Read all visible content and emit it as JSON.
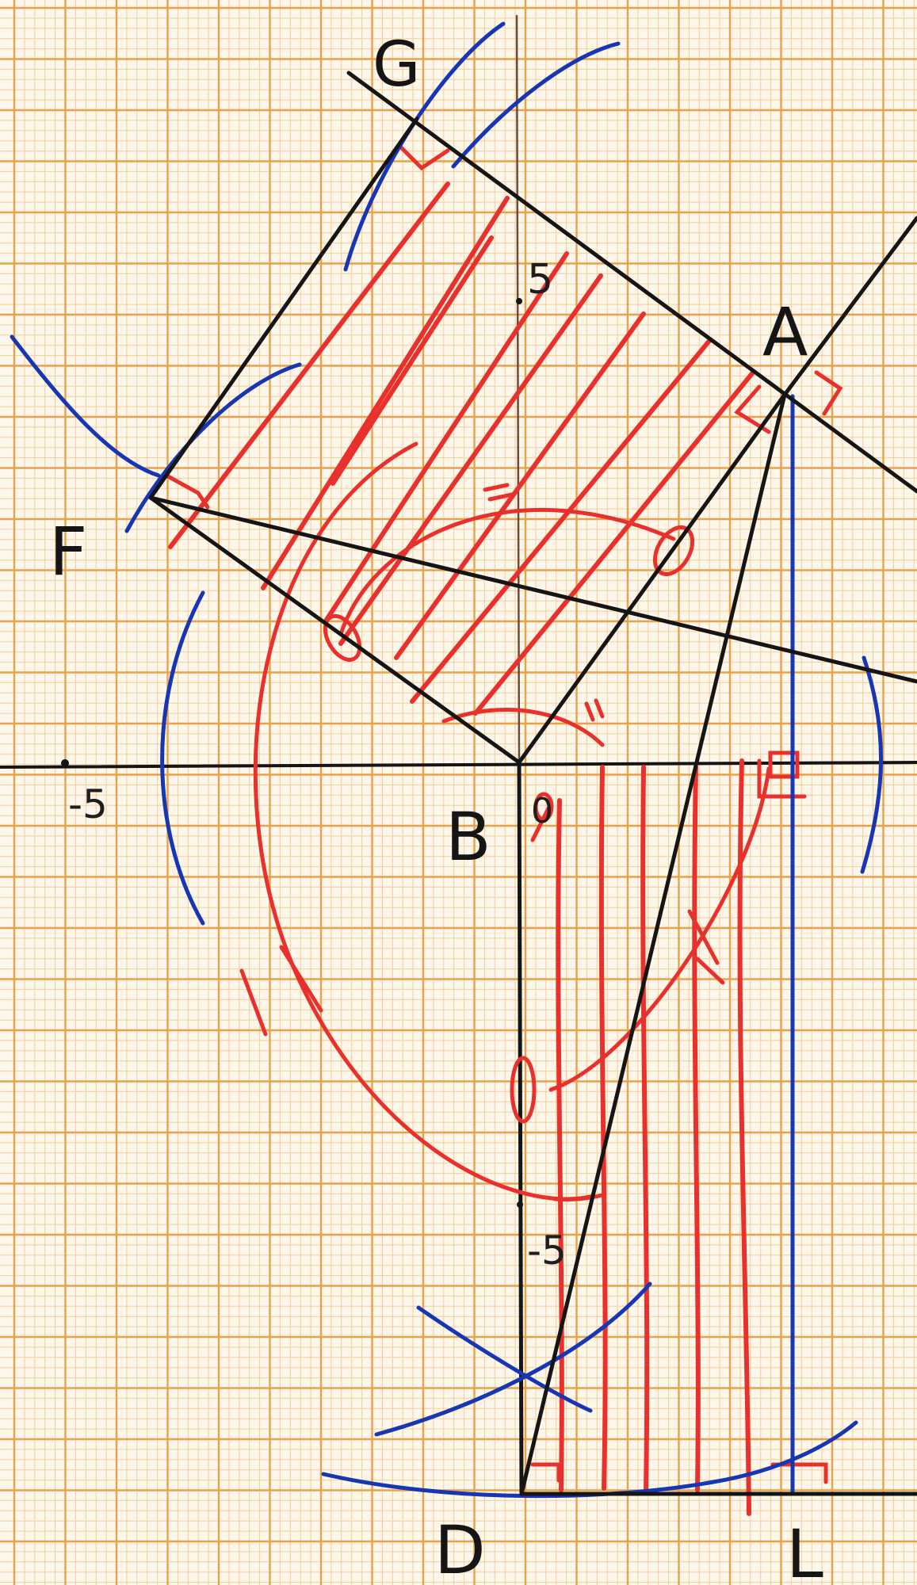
{
  "points": {
    "G": "G",
    "A": "A",
    "F": "F",
    "B": "B",
    "D": "D",
    "L": "L"
  },
  "axis_ticks": {
    "y_plus_5": "5",
    "x_minus_5": "-5",
    "origin": "0",
    "y_minus_5": "-5"
  },
  "colors": {
    "paper": "#fdf6ea",
    "grid_major": "#e9a24a",
    "grid_minor": "#f3cf98",
    "ink_black": "#151515",
    "ink_red": "#e8302c",
    "ink_blue": "#1736b4"
  }
}
